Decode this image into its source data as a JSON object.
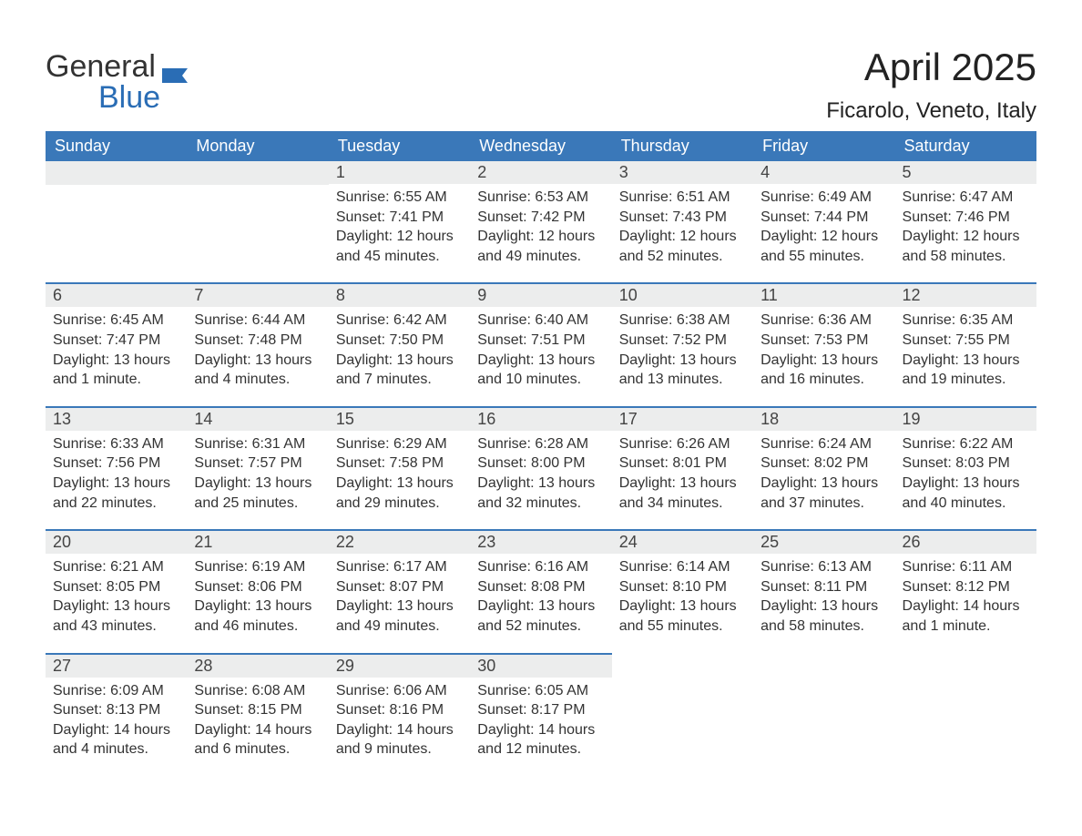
{
  "logo": {
    "text1": "General",
    "text2": "Blue"
  },
  "title": "April 2025",
  "location": "Ficarolo, Veneto, Italy",
  "colors": {
    "header_bg": "#3a78b9",
    "header_text": "#ffffff",
    "daynum_bg": "#eceded",
    "row_border": "#3a78b9",
    "body_text": "#333333",
    "logo_blue": "#2a6db5"
  },
  "day_headers": [
    "Sunday",
    "Monday",
    "Tuesday",
    "Wednesday",
    "Thursday",
    "Friday",
    "Saturday"
  ],
  "weeks": [
    [
      {
        "empty": true
      },
      {
        "empty": true
      },
      {
        "num": "1",
        "sunrise": "6:55 AM",
        "sunset": "7:41 PM",
        "daylight": "12 hours and 45 minutes."
      },
      {
        "num": "2",
        "sunrise": "6:53 AM",
        "sunset": "7:42 PM",
        "daylight": "12 hours and 49 minutes."
      },
      {
        "num": "3",
        "sunrise": "6:51 AM",
        "sunset": "7:43 PM",
        "daylight": "12 hours and 52 minutes."
      },
      {
        "num": "4",
        "sunrise": "6:49 AM",
        "sunset": "7:44 PM",
        "daylight": "12 hours and 55 minutes."
      },
      {
        "num": "5",
        "sunrise": "6:47 AM",
        "sunset": "7:46 PM",
        "daylight": "12 hours and 58 minutes."
      }
    ],
    [
      {
        "num": "6",
        "sunrise": "6:45 AM",
        "sunset": "7:47 PM",
        "daylight": "13 hours and 1 minute."
      },
      {
        "num": "7",
        "sunrise": "6:44 AM",
        "sunset": "7:48 PM",
        "daylight": "13 hours and 4 minutes."
      },
      {
        "num": "8",
        "sunrise": "6:42 AM",
        "sunset": "7:50 PM",
        "daylight": "13 hours and 7 minutes."
      },
      {
        "num": "9",
        "sunrise": "6:40 AM",
        "sunset": "7:51 PM",
        "daylight": "13 hours and 10 minutes."
      },
      {
        "num": "10",
        "sunrise": "6:38 AM",
        "sunset": "7:52 PM",
        "daylight": "13 hours and 13 minutes."
      },
      {
        "num": "11",
        "sunrise": "6:36 AM",
        "sunset": "7:53 PM",
        "daylight": "13 hours and 16 minutes."
      },
      {
        "num": "12",
        "sunrise": "6:35 AM",
        "sunset": "7:55 PM",
        "daylight": "13 hours and 19 minutes."
      }
    ],
    [
      {
        "num": "13",
        "sunrise": "6:33 AM",
        "sunset": "7:56 PM",
        "daylight": "13 hours and 22 minutes."
      },
      {
        "num": "14",
        "sunrise": "6:31 AM",
        "sunset": "7:57 PM",
        "daylight": "13 hours and 25 minutes."
      },
      {
        "num": "15",
        "sunrise": "6:29 AM",
        "sunset": "7:58 PM",
        "daylight": "13 hours and 29 minutes."
      },
      {
        "num": "16",
        "sunrise": "6:28 AM",
        "sunset": "8:00 PM",
        "daylight": "13 hours and 32 minutes."
      },
      {
        "num": "17",
        "sunrise": "6:26 AM",
        "sunset": "8:01 PM",
        "daylight": "13 hours and 34 minutes."
      },
      {
        "num": "18",
        "sunrise": "6:24 AM",
        "sunset": "8:02 PM",
        "daylight": "13 hours and 37 minutes."
      },
      {
        "num": "19",
        "sunrise": "6:22 AM",
        "sunset": "8:03 PM",
        "daylight": "13 hours and 40 minutes."
      }
    ],
    [
      {
        "num": "20",
        "sunrise": "6:21 AM",
        "sunset": "8:05 PM",
        "daylight": "13 hours and 43 minutes."
      },
      {
        "num": "21",
        "sunrise": "6:19 AM",
        "sunset": "8:06 PM",
        "daylight": "13 hours and 46 minutes."
      },
      {
        "num": "22",
        "sunrise": "6:17 AM",
        "sunset": "8:07 PM",
        "daylight": "13 hours and 49 minutes."
      },
      {
        "num": "23",
        "sunrise": "6:16 AM",
        "sunset": "8:08 PM",
        "daylight": "13 hours and 52 minutes."
      },
      {
        "num": "24",
        "sunrise": "6:14 AM",
        "sunset": "8:10 PM",
        "daylight": "13 hours and 55 minutes."
      },
      {
        "num": "25",
        "sunrise": "6:13 AM",
        "sunset": "8:11 PM",
        "daylight": "13 hours and 58 minutes."
      },
      {
        "num": "26",
        "sunrise": "6:11 AM",
        "sunset": "8:12 PM",
        "daylight": "14 hours and 1 minute."
      }
    ],
    [
      {
        "num": "27",
        "sunrise": "6:09 AM",
        "sunset": "8:13 PM",
        "daylight": "14 hours and 4 minutes."
      },
      {
        "num": "28",
        "sunrise": "6:08 AM",
        "sunset": "8:15 PM",
        "daylight": "14 hours and 6 minutes."
      },
      {
        "num": "29",
        "sunrise": "6:06 AM",
        "sunset": "8:16 PM",
        "daylight": "14 hours and 9 minutes."
      },
      {
        "num": "30",
        "sunrise": "6:05 AM",
        "sunset": "8:17 PM",
        "daylight": "14 hours and 12 minutes."
      },
      {
        "empty": true
      },
      {
        "empty": true
      },
      {
        "empty": true
      }
    ]
  ],
  "labels": {
    "sunrise": "Sunrise:",
    "sunset": "Sunset:",
    "daylight": "Daylight:"
  }
}
